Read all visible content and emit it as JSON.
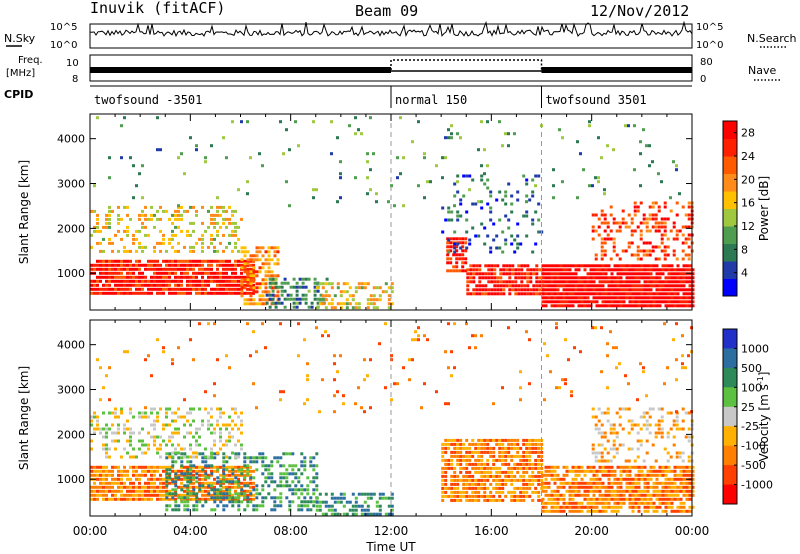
{
  "header": {
    "station": "Inuvik (fitACF)",
    "beam": "Beam 09",
    "date": "12/Nov/2012"
  },
  "strip_labels": {
    "nsky": "N.Sky",
    "nsearch": "N.Search",
    "freq_line1": "Freq.",
    "freq_line2": "[MHz]",
    "nave": "Nave",
    "cpid": "CPID"
  },
  "strip_ticks": {
    "noise_top": "10^5",
    "noise_bottom": "10^0",
    "freq_top": "10",
    "freq_bottom": "8",
    "nave_top": "80",
    "nave_bottom": "0"
  },
  "cpid_segments": [
    {
      "label": "twofsound -3501",
      "start_hour": 0
    },
    {
      "label": "normal 150",
      "start_hour": 12
    },
    {
      "label": "twofsound 3501",
      "start_hour": 18
    }
  ],
  "colors": {
    "power_scale": [
      "#0000ff",
      "#203aa8",
      "#2c7a54",
      "#4f9e4f",
      "#9fc83f",
      "#ffc000",
      "#ff8c1a",
      "#ff5a00",
      "#ff2000",
      "#ff0000"
    ],
    "velocity_scale": [
      "#2030c8",
      "#2c6ea0",
      "#2f8a5a",
      "#5cc040",
      "#c8c8c8",
      "#ffb000",
      "#ff8000",
      "#ff4000",
      "#ff0000"
    ]
  },
  "chart_data": [
    {
      "type": "heatmap",
      "name": "power",
      "ylabel": "Slant Range [km]",
      "xlabel": "Time UT",
      "x_ticks": [
        "00:00",
        "04:00",
        "08:00",
        "12:00",
        "16:00",
        "20:00",
        "00:00"
      ],
      "x_range_hours": [
        0,
        24
      ],
      "y_ticks": [
        1000,
        2000,
        3000,
        4000
      ],
      "ylim": [
        180,
        4550
      ],
      "colorbar_label": "Power [dB]",
      "colorbar_ticks": [
        4,
        8,
        12,
        16,
        20,
        24,
        28
      ],
      "colorbar_range": [
        0,
        30
      ],
      "dashed_markers_hours": [
        12,
        18
      ],
      "scatter_regions": [
        {
          "t0": 0,
          "t1": 6.5,
          "r0": 500,
          "r1": 1300,
          "level": 27,
          "density": 0.9
        },
        {
          "t0": 6.0,
          "t1": 7.5,
          "r0": 300,
          "r1": 1600,
          "level": 20,
          "density": 0.7
        },
        {
          "t0": 7.0,
          "t1": 9.5,
          "r0": 200,
          "r1": 900,
          "level": 8,
          "density": 0.5
        },
        {
          "t0": 9.0,
          "t1": 12.0,
          "r0": 200,
          "r1": 800,
          "level": 16,
          "density": 0.5
        },
        {
          "t0": 0,
          "t1": 6.0,
          "r0": 1500,
          "r1": 2500,
          "level": 16,
          "density": 0.35
        },
        {
          "t0": 14.2,
          "t1": 15.0,
          "r0": 1000,
          "r1": 1800,
          "level": 26,
          "density": 0.8
        },
        {
          "t0": 15.0,
          "t1": 18.0,
          "r0": 500,
          "r1": 1200,
          "level": 27,
          "density": 0.85
        },
        {
          "t0": 14.0,
          "t1": 18.0,
          "r0": 1500,
          "r1": 3200,
          "level": 6,
          "density": 0.15
        },
        {
          "t0": 18.0,
          "t1": 24.0,
          "r0": 250,
          "r1": 1200,
          "level": 29,
          "density": 0.95
        },
        {
          "t0": 20.0,
          "t1": 24.0,
          "r0": 1300,
          "r1": 2600,
          "level": 24,
          "density": 0.35
        },
        {
          "t0": 0,
          "t1": 24,
          "r0": 2500,
          "r1": 4500,
          "level": 10,
          "density": 0.03
        }
      ]
    },
    {
      "type": "heatmap",
      "name": "velocity",
      "ylabel": "Slant Range [km]",
      "xlabel": "Time UT",
      "x_ticks": [
        "00:00",
        "04:00",
        "08:00",
        "12:00",
        "16:00",
        "20:00",
        "00:00"
      ],
      "x_range_hours": [
        0,
        24
      ],
      "y_ticks": [
        1000,
        2000,
        3000,
        4000
      ],
      "ylim": [
        180,
        4550
      ],
      "colorbar_label": "Velocity [m s^-1]",
      "colorbar_ticks": [
        "1000",
        "500",
        "100",
        "25",
        "-25",
        "-100",
        "-500",
        "-1000"
      ],
      "dashed_markers_hours": [
        12,
        18
      ],
      "scatter_regions": [
        {
          "t0": 0,
          "t1": 6.5,
          "r0": 500,
          "r1": 1300,
          "level": 6,
          "density": 0.85
        },
        {
          "t0": 3.0,
          "t1": 9.0,
          "r0": 300,
          "r1": 1600,
          "level": 2,
          "density": 0.5
        },
        {
          "t0": 0,
          "t1": 6.0,
          "r0": 1500,
          "r1": 2600,
          "level": 4,
          "density": 0.35
        },
        {
          "t0": 9.0,
          "t1": 12.0,
          "r0": 200,
          "r1": 700,
          "level": 2,
          "density": 0.5
        },
        {
          "t0": 14.0,
          "t1": 18.0,
          "r0": 500,
          "r1": 1900,
          "level": 6,
          "density": 0.8
        },
        {
          "t0": 18.0,
          "t1": 24.0,
          "r0": 300,
          "r1": 1300,
          "level": 6,
          "density": 0.8
        },
        {
          "t0": 20.0,
          "t1": 24.0,
          "r0": 1400,
          "r1": 2600,
          "level": 5,
          "density": 0.3
        },
        {
          "t0": 0,
          "t1": 24,
          "r0": 2500,
          "r1": 4500,
          "level": 6,
          "density": 0.03
        }
      ]
    }
  ]
}
